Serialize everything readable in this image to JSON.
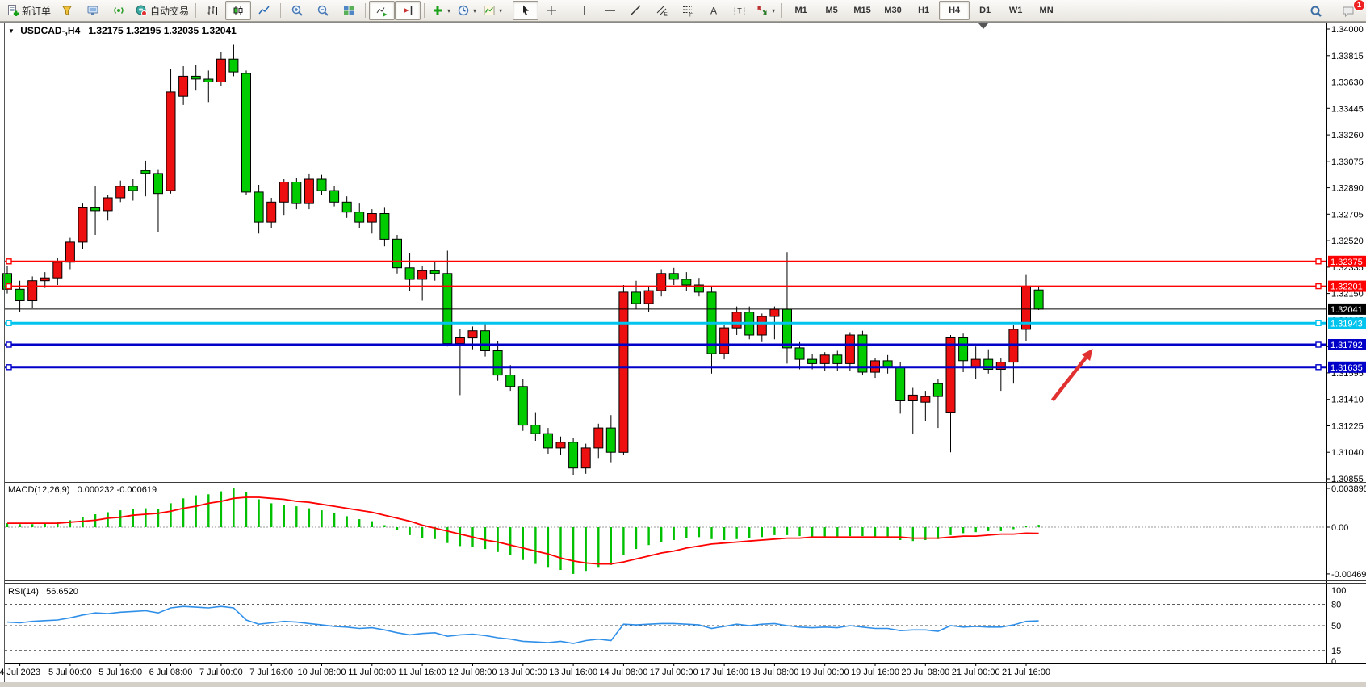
{
  "toolbar": {
    "notification_badge": "1",
    "groups": [
      {
        "items": [
          {
            "name": "new-order",
            "icon": "doc-plus",
            "label": "新订单"
          },
          {
            "name": "styler",
            "icon": "cone"
          },
          {
            "name": "chart-profile",
            "icon": "screen"
          },
          {
            "name": "signals",
            "icon": "signal"
          },
          {
            "name": "autotrading",
            "icon": "robot",
            "label": "自动交易"
          }
        ]
      },
      {
        "items": [
          {
            "name": "bar-chart-mode",
            "icon": "bars"
          },
          {
            "name": "candlestick-mode",
            "icon": "candles",
            "active": true
          },
          {
            "name": "line-chart-mode",
            "icon": "line"
          }
        ]
      },
      {
        "items": [
          {
            "name": "zoom-in",
            "icon": "zoom-in"
          },
          {
            "name": "zoom-out",
            "icon": "zoom-out"
          },
          {
            "name": "tile-windows",
            "icon": "tiles"
          }
        ]
      },
      {
        "items": [
          {
            "name": "auto-scroll",
            "icon": "autoscroll",
            "active": true
          },
          {
            "name": "chart-shift",
            "icon": "shift",
            "active": true
          }
        ]
      },
      {
        "items": [
          {
            "name": "indicators",
            "icon": "ind-plus",
            "caret": true
          },
          {
            "name": "periods",
            "icon": "clock",
            "caret": true
          },
          {
            "name": "templates",
            "icon": "template",
            "caret": true
          }
        ]
      },
      {
        "items": [
          {
            "name": "cursor",
            "icon": "cursor",
            "active": true
          },
          {
            "name": "crosshair",
            "icon": "crosshair"
          }
        ]
      },
      {
        "items": [
          {
            "name": "vertical-line",
            "icon": "vline"
          },
          {
            "name": "horizontal-line",
            "icon": "hline"
          },
          {
            "name": "trendline",
            "icon": "tline"
          },
          {
            "name": "equidistant-channel",
            "icon": "channel"
          },
          {
            "name": "fibonacci",
            "icon": "fibo"
          },
          {
            "name": "text",
            "icon": "text-a"
          },
          {
            "name": "text-label",
            "icon": "text-t"
          },
          {
            "name": "arrows",
            "icon": "arrows",
            "caret": true
          }
        ]
      }
    ],
    "timeframes": [
      "M1",
      "M5",
      "M15",
      "M30",
      "H1",
      "H4",
      "D1",
      "W1",
      "MN"
    ],
    "active_timeframe": "H4"
  },
  "header": {
    "symbol_period": "USDCAD-,H4",
    "ohlc": "1.32175 1.32195 1.32035 1.32041"
  },
  "chart_data": {
    "type": "candlestick",
    "symbol": "USDCAD-",
    "period": "H4",
    "ylim": [
      1.30855,
      1.34
    ],
    "price_axis_ticks": [
      "1.34000",
      "1.33815",
      "1.33630",
      "1.33445",
      "1.33260",
      "1.33075",
      "1.32890",
      "1.32705",
      "1.32520",
      "1.32335",
      "1.32150",
      "1.31965",
      "1.31780",
      "1.31595",
      "1.31410",
      "1.31225",
      "1.31040",
      "1.30855"
    ],
    "colors": {
      "bull": "#ee1010",
      "bear": "#00cc00",
      "wick": "#000000",
      "macd_hist": "#00c000",
      "macd_signal": "#ff0000",
      "rsi": "#2f8fe8",
      "arrow": "#e03030",
      "axis_text": "#000000"
    },
    "candles": [
      [
        "4 Jul 04:00",
        1.3229,
        1.3234,
        1.3215,
        1.3218
      ],
      [
        "4 Jul 08:00",
        1.3218,
        1.3224,
        1.3202,
        1.321
      ],
      [
        "4 Jul 12:00",
        1.321,
        1.3227,
        1.3205,
        1.3224
      ],
      [
        "4 Jul 16:00",
        1.3224,
        1.323,
        1.3219,
        1.3226
      ],
      [
        "4 Jul 20:00",
        1.3226,
        1.324,
        1.3221,
        1.3237
      ],
      [
        "5 Jul 00:00",
        1.3237,
        1.3254,
        1.3232,
        1.3251
      ],
      [
        "5 Jul 04:00",
        1.3251,
        1.3278,
        1.3246,
        1.3275
      ],
      [
        "5 Jul 08:00",
        1.3275,
        1.329,
        1.3256,
        1.3273
      ],
      [
        "5 Jul 12:00",
        1.3273,
        1.3284,
        1.3266,
        1.3282
      ],
      [
        "5 Jul 16:00",
        1.3282,
        1.3294,
        1.3279,
        1.329
      ],
      [
        "5 Jul 20:00",
        1.329,
        1.3295,
        1.328,
        1.3287
      ],
      [
        "6 Jul 00:00",
        1.3301,
        1.3308,
        1.3283,
        1.3299
      ],
      [
        "6 Jul 04:00",
        1.3299,
        1.3302,
        1.3258,
        1.3285
      ],
      [
        "6 Jul 08:00",
        1.3287,
        1.3372,
        1.3285,
        1.3356
      ],
      [
        "6 Jul 12:00",
        1.3353,
        1.3374,
        1.3347,
        1.3367
      ],
      [
        "6 Jul 16:00",
        1.3367,
        1.3375,
        1.3357,
        1.3365
      ],
      [
        "6 Jul 20:00",
        1.3365,
        1.3371,
        1.3349,
        1.3363
      ],
      [
        "7 Jul 00:00",
        1.3363,
        1.3384,
        1.336,
        1.3379
      ],
      [
        "7 Jul 04:00",
        1.3379,
        1.3389,
        1.3367,
        1.337
      ],
      [
        "7 Jul 08:00",
        1.3369,
        1.3371,
        1.3284,
        1.3286
      ],
      [
        "7 Jul 12:00",
        1.3286,
        1.3291,
        1.3257,
        1.3265
      ],
      [
        "7 Jul 16:00",
        1.3265,
        1.3282,
        1.3261,
        1.3279
      ],
      [
        "7 Jul 20:00",
        1.3279,
        1.3295,
        1.327,
        1.3293
      ],
      [
        "10 Jul 00:00",
        1.3293,
        1.3296,
        1.3274,
        1.3278
      ],
      [
        "10 Jul 04:00",
        1.3278,
        1.3299,
        1.3274,
        1.3295
      ],
      [
        "10 Jul 08:00",
        1.3295,
        1.3298,
        1.3284,
        1.3287
      ],
      [
        "10 Jul 12:00",
        1.3287,
        1.329,
        1.3276,
        1.3279
      ],
      [
        "10 Jul 16:00",
        1.3279,
        1.3283,
        1.3268,
        1.3272
      ],
      [
        "10 Jul 20:00",
        1.3272,
        1.3278,
        1.3261,
        1.3265
      ],
      [
        "11 Jul 00:00",
        1.3265,
        1.3274,
        1.3257,
        1.3271
      ],
      [
        "11 Jul 04:00",
        1.3271,
        1.3275,
        1.3248,
        1.3253
      ],
      [
        "11 Jul 08:00",
        1.3253,
        1.3256,
        1.3229,
        1.3233
      ],
      [
        "11 Jul 12:00",
        1.3233,
        1.3243,
        1.3217,
        1.3225
      ],
      [
        "11 Jul 16:00",
        1.3225,
        1.3234,
        1.321,
        1.3231
      ],
      [
        "11 Jul 20:00",
        1.3231,
        1.3237,
        1.3224,
        1.3229
      ],
      [
        "12 Jul 00:00",
        1.3229,
        1.3245,
        1.3178,
        1.318
      ],
      [
        "12 Jul 04:00",
        1.318,
        1.319,
        1.3144,
        1.3184
      ],
      [
        "12 Jul 08:00",
        1.3184,
        1.3192,
        1.3176,
        1.3189
      ],
      [
        "12 Jul 12:00",
        1.3189,
        1.3194,
        1.3171,
        1.3175
      ],
      [
        "12 Jul 16:00",
        1.3175,
        1.3182,
        1.3154,
        1.3158
      ],
      [
        "12 Jul 20:00",
        1.3158,
        1.3165,
        1.3147,
        1.315
      ],
      [
        "13 Jul 00:00",
        1.315,
        1.3155,
        1.3119,
        1.3123
      ],
      [
        "13 Jul 04:00",
        1.3123,
        1.3132,
        1.3112,
        1.3117
      ],
      [
        "13 Jul 08:00",
        1.3117,
        1.3121,
        1.3103,
        1.3107
      ],
      [
        "13 Jul 12:00",
        1.3107,
        1.3115,
        1.3102,
        1.3111
      ],
      [
        "13 Jul 16:00",
        1.3111,
        1.3114,
        1.3088,
        1.3093
      ],
      [
        "13 Jul 20:00",
        1.3093,
        1.311,
        1.3089,
        1.3107
      ],
      [
        "14 Jul 00:00",
        1.3107,
        1.3124,
        1.31,
        1.3121
      ],
      [
        "14 Jul 04:00",
        1.3121,
        1.313,
        1.3097,
        1.3104
      ],
      [
        "14 Jul 08:00",
        1.3104,
        1.3221,
        1.3102,
        1.3216
      ],
      [
        "14 Jul 12:00",
        1.3216,
        1.3224,
        1.3204,
        1.3208
      ],
      [
        "14 Jul 16:00",
        1.3208,
        1.322,
        1.3202,
        1.3217
      ],
      [
        "14 Jul 20:00",
        1.3217,
        1.3232,
        1.3213,
        1.3229
      ],
      [
        "17 Jul 00:00",
        1.3229,
        1.3233,
        1.3221,
        1.3225
      ],
      [
        "17 Jul 04:00",
        1.3225,
        1.323,
        1.3217,
        1.3221
      ],
      [
        "17 Jul 08:00",
        1.3221,
        1.3226,
        1.3213,
        1.3216
      ],
      [
        "17 Jul 12:00",
        1.3216,
        1.322,
        1.3159,
        1.3173
      ],
      [
        "17 Jul 16:00",
        1.3173,
        1.3193,
        1.3169,
        1.3191
      ],
      [
        "17 Jul 20:00",
        1.3191,
        1.3206,
        1.3186,
        1.3202
      ],
      [
        "18 Jul 00:00",
        1.3202,
        1.3206,
        1.3183,
        1.3186
      ],
      [
        "18 Jul 04:00",
        1.3186,
        1.3201,
        1.3181,
        1.3199
      ],
      [
        "18 Jul 08:00",
        1.3199,
        1.3206,
        1.3183,
        1.3204
      ],
      [
        "18 Jul 12:00",
        1.3204,
        1.3244,
        1.3166,
        1.3177
      ],
      [
        "18 Jul 16:00",
        1.3177,
        1.3181,
        1.3162,
        1.3169
      ],
      [
        "18 Jul 20:00",
        1.3169,
        1.3173,
        1.3162,
        1.3166
      ],
      [
        "19 Jul 00:00",
        1.3166,
        1.3174,
        1.3161,
        1.3172
      ],
      [
        "19 Jul 04:00",
        1.3172,
        1.3175,
        1.3161,
        1.3166
      ],
      [
        "19 Jul 08:00",
        1.3166,
        1.3188,
        1.3161,
        1.3186
      ],
      [
        "19 Jul 12:00",
        1.3186,
        1.3189,
        1.3158,
        1.316
      ],
      [
        "19 Jul 16:00",
        1.316,
        1.317,
        1.3156,
        1.3168
      ],
      [
        "19 Jul 20:00",
        1.3168,
        1.3172,
        1.3159,
        1.3164
      ],
      [
        "20 Jul 00:00",
        1.3164,
        1.3167,
        1.3131,
        1.314
      ],
      [
        "20 Jul 04:00",
        1.314,
        1.3149,
        1.3117,
        1.3144
      ],
      [
        "20 Jul 08:00",
        1.3139,
        1.3147,
        1.3126,
        1.3143
      ],
      [
        "20 Jul 12:00",
        1.3152,
        1.3155,
        1.3121,
        1.3143
      ],
      [
        "20 Jul 16:00",
        1.3132,
        1.3186,
        1.3104,
        1.3184
      ],
      [
        "20 Jul 20:00",
        1.3184,
        1.3187,
        1.316,
        1.3168
      ],
      [
        "21 Jul 00:00",
        1.3164,
        1.3178,
        1.3155,
        1.3169
      ],
      [
        "21 Jul 04:00",
        1.3169,
        1.3176,
        1.3159,
        1.3162
      ],
      [
        "21 Jul 08:00",
        1.3162,
        1.317,
        1.3147,
        1.3167
      ],
      [
        "21 Jul 12:00",
        1.3167,
        1.3193,
        1.3152,
        1.319
      ],
      [
        "21 Jul 16:00",
        1.319,
        1.3228,
        1.3182,
        1.322
      ],
      [
        "21 Jul 20:00",
        1.32175,
        1.32195,
        1.32035,
        1.32041
      ]
    ],
    "time_labels": [
      {
        "text": "4 Jul 2023",
        "bar": 1
      },
      {
        "text": "5 Jul 00:00",
        "bar": 5
      },
      {
        "text": "5 Jul 16:00",
        "bar": 9
      },
      {
        "text": "6 Jul 08:00",
        "bar": 13
      },
      {
        "text": "7 Jul 00:00",
        "bar": 17
      },
      {
        "text": "7 Jul 16:00",
        "bar": 21
      },
      {
        "text": "10 Jul 08:00",
        "bar": 25
      },
      {
        "text": "11 Jul 00:00",
        "bar": 29
      },
      {
        "text": "11 Jul 16:00",
        "bar": 33
      },
      {
        "text": "12 Jul 08:00",
        "bar": 37
      },
      {
        "text": "13 Jul 00:00",
        "bar": 41
      },
      {
        "text": "13 Jul 16:00",
        "bar": 45
      },
      {
        "text": "14 Jul 08:00",
        "bar": 49
      },
      {
        "text": "17 Jul 00:00",
        "bar": 53
      },
      {
        "text": "17 Jul 16:00",
        "bar": 57
      },
      {
        "text": "18 Jul 08:00",
        "bar": 61
      },
      {
        "text": "19 Jul 00:00",
        "bar": 65
      },
      {
        "text": "19 Jul 16:00",
        "bar": 69
      },
      {
        "text": "20 Jul 08:00",
        "bar": 73
      },
      {
        "text": "21 Jul 00:00",
        "bar": 77
      },
      {
        "text": "21 Jul 16:00",
        "bar": 81
      }
    ],
    "hlines": [
      {
        "label": "1.32375",
        "price": 1.32375,
        "color": "#ff0000",
        "width": 2,
        "anchors": true
      },
      {
        "label": "1.32201",
        "price": 1.32201,
        "color": "#ff0000",
        "width": 2,
        "anchors": true
      },
      {
        "label": "1.32041",
        "price": 1.32041,
        "color": "#000000",
        "width": 1,
        "anchors": false,
        "role": "current-price"
      },
      {
        "label": "1.31943",
        "price": 1.31943,
        "color": "#00c3ee",
        "width": 3,
        "anchors": true
      },
      {
        "label": "1.31792",
        "price": 1.31792,
        "color": "#0000c8",
        "width": 3,
        "anchors": true
      },
      {
        "label": "1.31635",
        "price": 1.31635,
        "color": "#0000c8",
        "width": 3,
        "anchors": true
      }
    ],
    "arrow_annotation": {
      "from": {
        "bar": 83.1,
        "price": 1.31403
      },
      "to": {
        "bar": 86.3,
        "price": 1.31764
      }
    },
    "macd": {
      "label": "MACD(12,26,9)",
      "value_text": "0.000232 -0.000619",
      "axis_labels": [
        "0.003895",
        "0.00",
        "-0.004699"
      ],
      "ylim": [
        -0.004699,
        0.003895
      ],
      "hist": [
        0.0004,
        0.0003,
        0.0003,
        0.0004,
        0.0005,
        0.0007,
        0.001,
        0.0013,
        0.0015,
        0.0017,
        0.0018,
        0.0019,
        0.0018,
        0.0024,
        0.0029,
        0.0032,
        0.0033,
        0.0036,
        0.0039,
        0.0035,
        0.0028,
        0.0024,
        0.0022,
        0.0021,
        0.0019,
        0.0017,
        0.0014,
        0.0011,
        0.0008,
        0.0006,
        0.0002,
        -0.0003,
        -0.0008,
        -0.0011,
        -0.0012,
        -0.0016,
        -0.0019,
        -0.002,
        -0.0022,
        -0.0025,
        -0.0028,
        -0.0033,
        -0.0037,
        -0.004,
        -0.0043,
        -0.0047,
        -0.0044,
        -0.004,
        -0.0038,
        -0.0028,
        -0.0022,
        -0.0018,
        -0.0015,
        -0.0013,
        -0.0011,
        -0.001,
        -0.0012,
        -0.0013,
        -0.0012,
        -0.0011,
        -0.001,
        -0.0008,
        -0.0008,
        -0.0009,
        -0.001,
        -0.001,
        -0.001,
        -0.0009,
        -0.0009,
        -0.001,
        -0.0011,
        -0.0013,
        -0.0014,
        -0.0013,
        -0.0012,
        -0.0008,
        -0.0006,
        -0.0005,
        -0.0004,
        -0.0004,
        -0.0002,
        0.0001,
        0.000232
      ],
      "signal": [
        0.0004,
        0.0004,
        0.0004,
        0.0004,
        0.0004,
        0.0005,
        0.0006,
        0.0007,
        0.0009,
        0.001,
        0.0012,
        0.0013,
        0.0014,
        0.0016,
        0.0019,
        0.0021,
        0.0024,
        0.0026,
        0.0029,
        0.003,
        0.003,
        0.0029,
        0.0028,
        0.0026,
        0.0025,
        0.0023,
        0.0021,
        0.0019,
        0.0017,
        0.0015,
        0.0012,
        0.0009,
        0.0006,
        0.0002,
        -0.0001,
        -0.0004,
        -0.0007,
        -0.001,
        -0.0013,
        -0.0015,
        -0.0018,
        -0.0021,
        -0.0024,
        -0.0027,
        -0.0031,
        -0.0034,
        -0.0036,
        -0.0037,
        -0.0037,
        -0.0035,
        -0.0032,
        -0.0029,
        -0.0026,
        -0.0024,
        -0.0021,
        -0.0019,
        -0.0017,
        -0.0016,
        -0.0015,
        -0.0014,
        -0.0013,
        -0.0012,
        -0.0011,
        -0.0011,
        -0.001,
        -0.001,
        -0.001,
        -0.001,
        -0.001,
        -0.001,
        -0.001,
        -0.001,
        -0.0011,
        -0.0011,
        -0.0011,
        -0.001,
        -0.0009,
        -0.0009,
        -0.0008,
        -0.0007,
        -0.0007,
        -0.0006,
        -0.000619
      ]
    },
    "rsi": {
      "label": "RSI(14)",
      "value_text": "56.6520",
      "axis_labels": [
        "100",
        "80",
        "50",
        "15",
        "0"
      ],
      "levels": [
        80,
        50,
        15
      ],
      "ylim": [
        0,
        100
      ],
      "values": [
        55,
        54,
        56,
        57,
        58,
        61,
        65,
        68,
        67,
        69,
        70,
        71,
        68,
        75,
        77,
        76,
        75,
        77,
        75,
        58,
        52,
        54,
        56,
        55,
        53,
        51,
        49,
        48,
        46,
        47,
        44,
        40,
        37,
        39,
        40,
        35,
        37,
        38,
        36,
        33,
        31,
        28,
        27,
        26,
        28,
        25,
        29,
        31,
        29,
        52,
        51,
        52,
        53,
        53,
        52,
        51,
        46,
        49,
        52,
        50,
        52,
        53,
        50,
        48,
        47,
        48,
        47,
        50,
        48,
        46,
        46,
        43,
        44,
        44,
        42,
        50,
        48,
        49,
        48,
        48,
        51,
        56,
        56.652
      ]
    }
  }
}
